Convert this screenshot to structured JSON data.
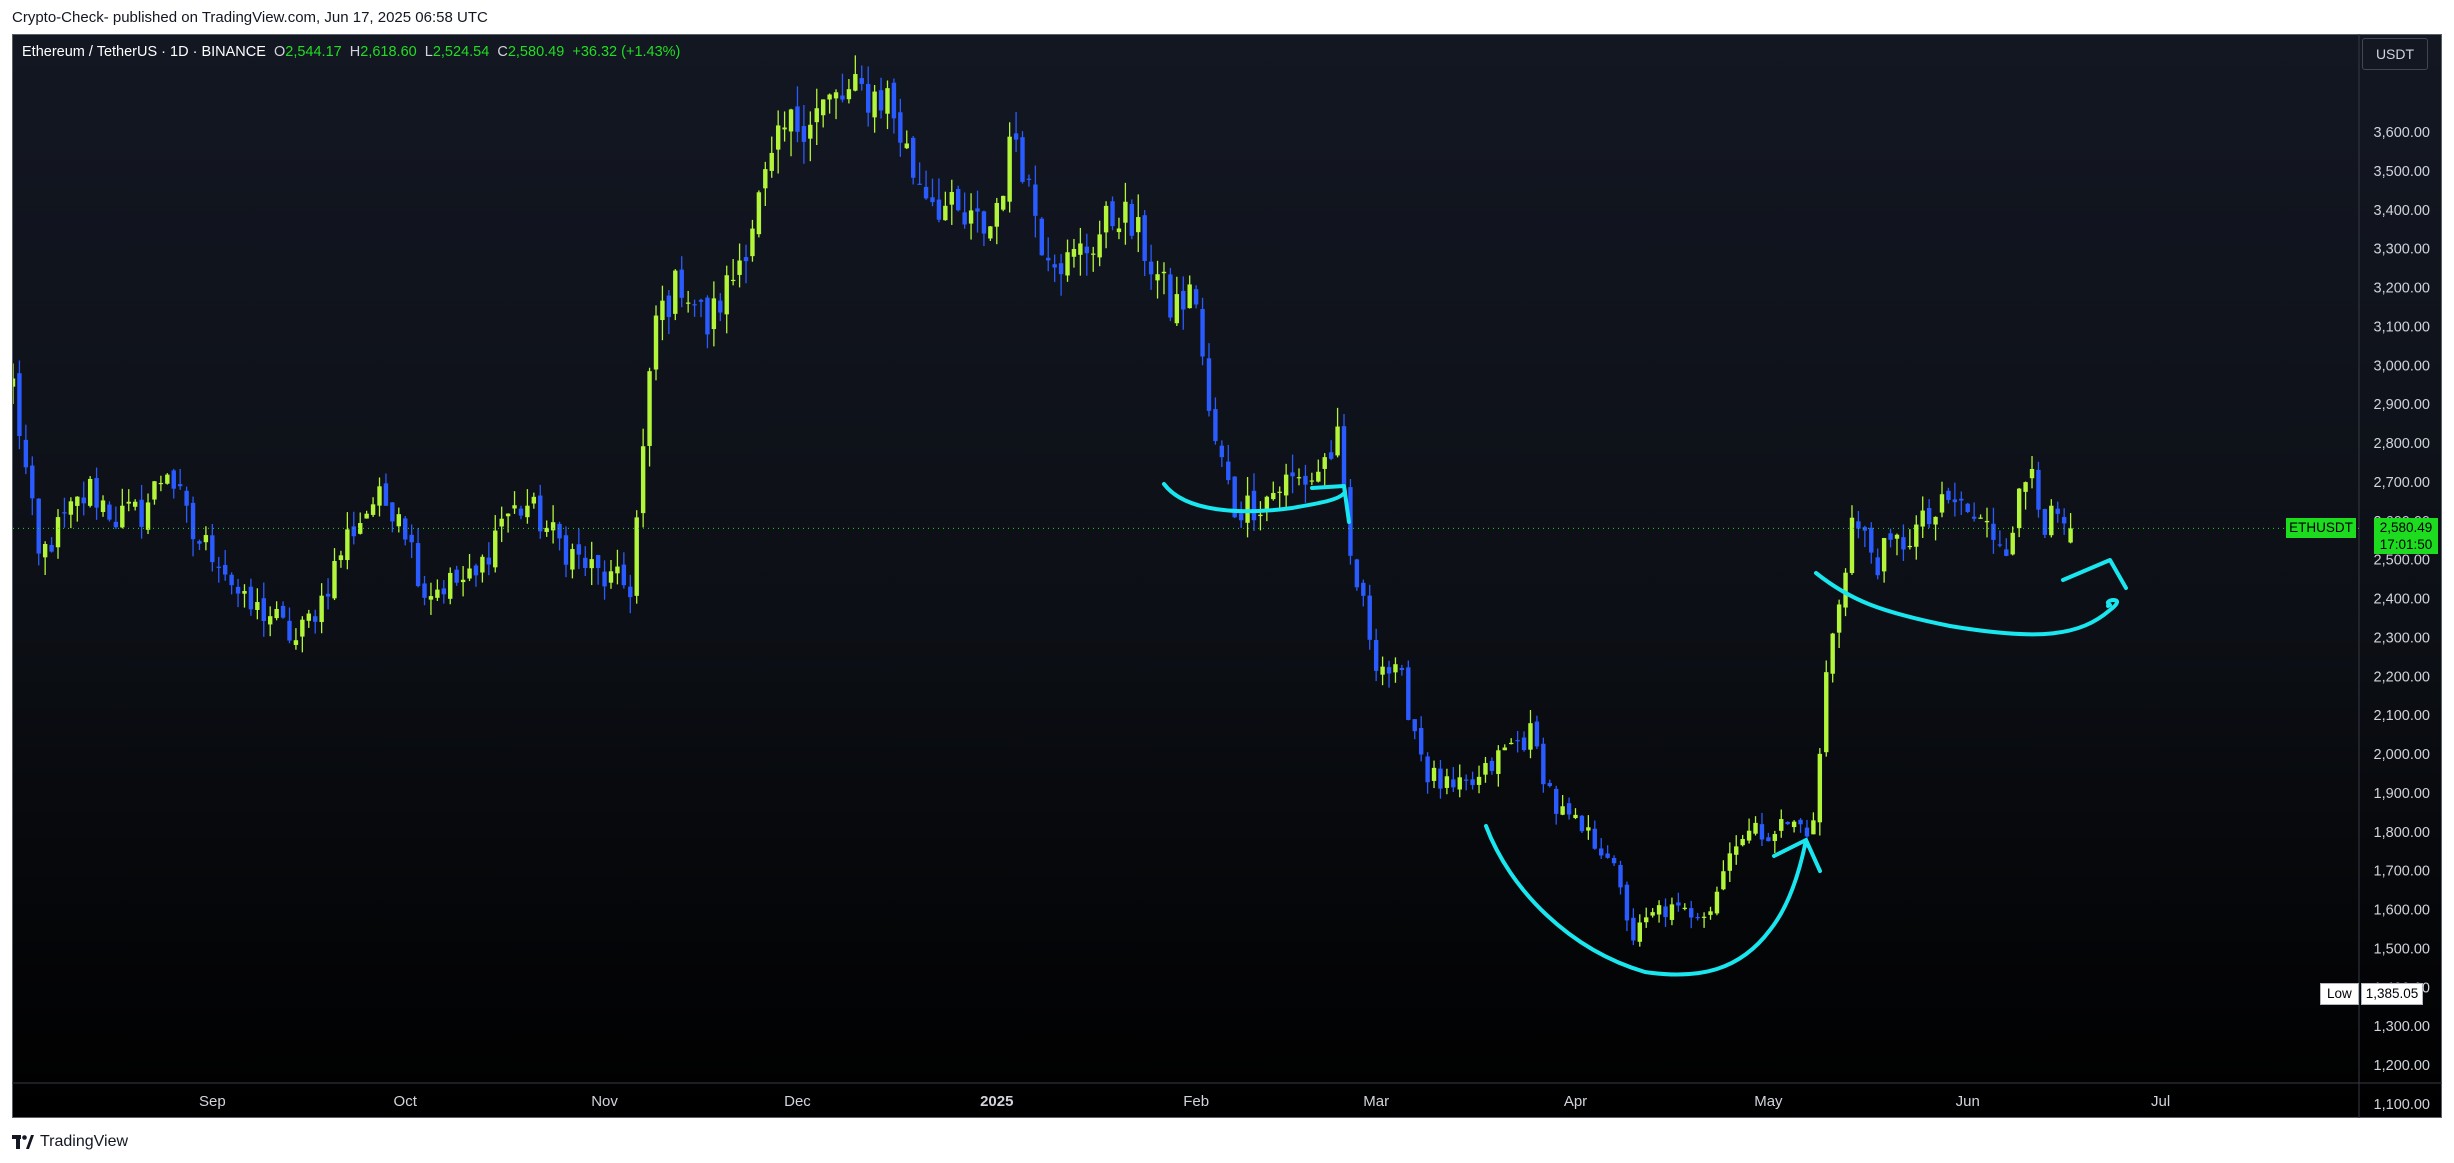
{
  "header": {
    "published_text": "Crypto-Check- published on TradingView.com, Jun 17, 2025 06:58 UTC"
  },
  "footer": {
    "brand": "TradingView",
    "logo_icon": "tradingview-logo-icon"
  },
  "legend": {
    "symbol": "Ethereum / TetherUS · 1D · BINANCE",
    "open_label": "O",
    "open": "2,544.17",
    "high_label": "H",
    "high": "2,618.60",
    "low_label": "L",
    "low": "2,524.54",
    "close_label": "C",
    "close": "2,580.49",
    "change": "+36.32 (+1.43%)"
  },
  "price_scale": {
    "unit": "USDT",
    "current_symbol": "ETHUSDT",
    "current_price": "2,580.49",
    "countdown": "17:01:50",
    "low_label": "Low",
    "low_value": "1,385.05"
  },
  "colors": {
    "up": "#b2f53a",
    "down": "#2a5bff",
    "annotation": "#19e6ee",
    "tag": "#1ddc20"
  },
  "chart_data": {
    "type": "candlestick",
    "title": "",
    "y_axis": {
      "min": 1050,
      "max": 3700,
      "ticks": [
        "1,100.00",
        "1,200.00",
        "1,300.00",
        "1,400.00",
        "1,500.00",
        "1,600.00",
        "1,700.00",
        "1,800.00",
        "1,900.00",
        "2,000.00",
        "2,100.00",
        "2,200.00",
        "2,300.00",
        "2,400.00",
        "2,500.00",
        "2,600.00",
        "2,700.00",
        "2,800.00",
        "2,900.00",
        "3,000.00",
        "3,100.00",
        "3,200.00",
        "3,300.00",
        "3,400.00",
        "3,500.00",
        "3,600.00"
      ]
    },
    "x_axis": {
      "start": "2024-08-01",
      "end": "2025-07-28",
      "labels": [
        {
          "label": "Sep",
          "date": "2024-09-01"
        },
        {
          "label": "Oct",
          "date": "2024-10-01"
        },
        {
          "label": "Nov",
          "date": "2024-11-01"
        },
        {
          "label": "Dec",
          "date": "2024-12-01"
        },
        {
          "label": "2025",
          "date": "2025-01-01"
        },
        {
          "label": "Feb",
          "date": "2025-02-01"
        },
        {
          "label": "Mar",
          "date": "2025-03-01"
        },
        {
          "label": "Apr",
          "date": "2025-04-01"
        },
        {
          "label": "May",
          "date": "2025-05-01"
        },
        {
          "label": "Jun",
          "date": "2025-06-01"
        },
        {
          "label": "Jul",
          "date": "2025-07-01"
        }
      ]
    },
    "closes": [
      {
        "date": "2024-08-01",
        "close": 2950
      },
      {
        "date": "2024-08-05",
        "close": 2500
      },
      {
        "date": "2024-08-09",
        "close": 2600
      },
      {
        "date": "2024-08-13",
        "close": 2680
      },
      {
        "date": "2024-08-17",
        "close": 2610
      },
      {
        "date": "2024-08-21",
        "close": 2620
      },
      {
        "date": "2024-08-25",
        "close": 2740
      },
      {
        "date": "2024-08-29",
        "close": 2560
      },
      {
        "date": "2024-09-02",
        "close": 2510
      },
      {
        "date": "2024-09-06",
        "close": 2380
      },
      {
        "date": "2024-09-10",
        "close": 2360
      },
      {
        "date": "2024-09-14",
        "close": 2290
      },
      {
        "date": "2024-09-18",
        "close": 2400
      },
      {
        "date": "2024-09-22",
        "close": 2560
      },
      {
        "date": "2024-09-26",
        "close": 2650
      },
      {
        "date": "2024-09-30",
        "close": 2640
      },
      {
        "date": "2024-10-04",
        "close": 2420
      },
      {
        "date": "2024-10-08",
        "close": 2440
      },
      {
        "date": "2024-10-12",
        "close": 2450
      },
      {
        "date": "2024-10-16",
        "close": 2610
      },
      {
        "date": "2024-10-20",
        "close": 2640
      },
      {
        "date": "2024-10-24",
        "close": 2560
      },
      {
        "date": "2024-10-28",
        "close": 2500
      },
      {
        "date": "2024-11-01",
        "close": 2450
      },
      {
        "date": "2024-11-05",
        "close": 2430
      },
      {
        "date": "2024-11-09",
        "close": 3120
      },
      {
        "date": "2024-11-13",
        "close": 3220
      },
      {
        "date": "2024-11-17",
        "close": 3100
      },
      {
        "date": "2024-11-21",
        "close": 3230
      },
      {
        "date": "2024-11-25",
        "close": 3420
      },
      {
        "date": "2024-11-29",
        "close": 3600
      },
      {
        "date": "2024-12-03",
        "close": 3650
      },
      {
        "date": "2024-12-07",
        "close": 3680
      },
      {
        "date": "2024-12-11",
        "close": 3700
      },
      {
        "date": "2024-12-15",
        "close": 3690
      },
      {
        "date": "2024-12-19",
        "close": 3500
      },
      {
        "date": "2024-12-23",
        "close": 3420
      },
      {
        "date": "2024-12-27",
        "close": 3360
      },
      {
        "date": "2024-12-31",
        "close": 3360
      },
      {
        "date": "2025-01-04",
        "close": 3600
      },
      {
        "date": "2025-01-08",
        "close": 3330
      },
      {
        "date": "2025-01-12",
        "close": 3260
      },
      {
        "date": "2025-01-16",
        "close": 3320
      },
      {
        "date": "2025-01-20",
        "close": 3400
      },
      {
        "date": "2025-01-24",
        "close": 3300
      },
      {
        "date": "2025-01-28",
        "close": 3150
      },
      {
        "date": "2025-02-01",
        "close": 3180
      },
      {
        "date": "2025-02-03",
        "close": 2860
      },
      {
        "date": "2025-02-07",
        "close": 2630
      },
      {
        "date": "2025-02-11",
        "close": 2650
      },
      {
        "date": "2025-02-15",
        "close": 2700
      },
      {
        "date": "2025-02-19",
        "close": 2710
      },
      {
        "date": "2025-02-23",
        "close": 2800
      },
      {
        "date": "2025-02-25",
        "close": 2500
      },
      {
        "date": "2025-03-01",
        "close": 2250
      },
      {
        "date": "2025-03-05",
        "close": 2180
      },
      {
        "date": "2025-03-09",
        "close": 1950
      },
      {
        "date": "2025-03-13",
        "close": 1900
      },
      {
        "date": "2025-03-17",
        "close": 1930
      },
      {
        "date": "2025-03-21",
        "close": 2010
      },
      {
        "date": "2025-03-25",
        "close": 2050
      },
      {
        "date": "2025-03-29",
        "close": 1860
      },
      {
        "date": "2025-04-02",
        "close": 1800
      },
      {
        "date": "2025-04-06",
        "close": 1750
      },
      {
        "date": "2025-04-10",
        "close": 1530
      },
      {
        "date": "2025-04-14",
        "close": 1600
      },
      {
        "date": "2025-04-18",
        "close": 1590
      },
      {
        "date": "2025-04-22",
        "close": 1610
      },
      {
        "date": "2025-04-26",
        "close": 1790
      },
      {
        "date": "2025-04-30",
        "close": 1800
      },
      {
        "date": "2025-05-04",
        "close": 1820
      },
      {
        "date": "2025-05-08",
        "close": 1810
      },
      {
        "date": "2025-05-10",
        "close": 2200
      },
      {
        "date": "2025-05-14",
        "close": 2600
      },
      {
        "date": "2025-05-18",
        "close": 2500
      },
      {
        "date": "2025-05-22",
        "close": 2550
      },
      {
        "date": "2025-05-26",
        "close": 2600
      },
      {
        "date": "2025-05-30",
        "close": 2650
      },
      {
        "date": "2025-06-03",
        "close": 2590
      },
      {
        "date": "2025-06-07",
        "close": 2550
      },
      {
        "date": "2025-06-11",
        "close": 2750
      },
      {
        "date": "2025-06-13",
        "close": 2600
      },
      {
        "date": "2025-06-17",
        "close": 2580.49
      }
    ]
  }
}
